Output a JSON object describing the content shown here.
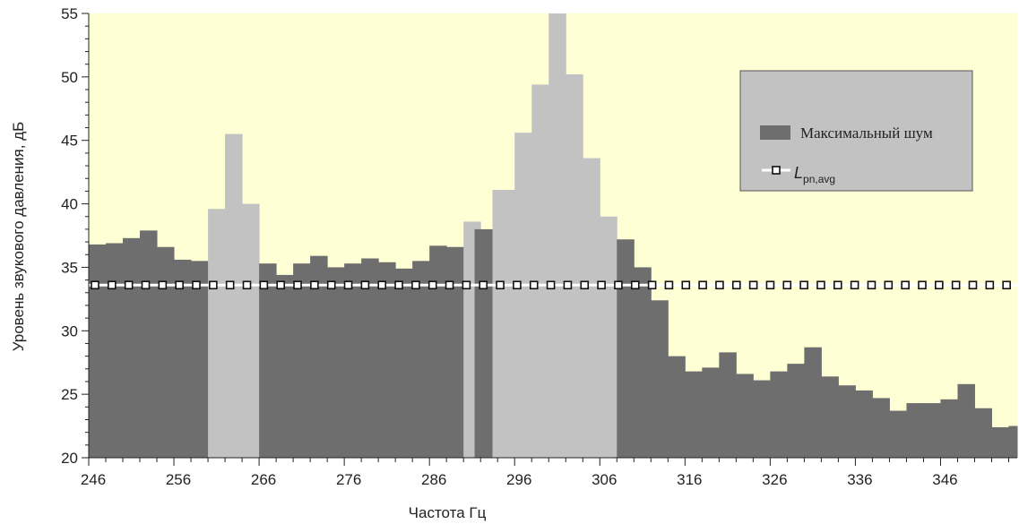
{
  "chart_data": {
    "type": "bar",
    "xlabel": "Частота Гц",
    "ylabel": "Уровень звукового давления, дБ",
    "xlim": [
      246,
      355
    ],
    "ylim": [
      20,
      55
    ],
    "x_ticks": [
      246,
      256,
      266,
      276,
      286,
      296,
      306,
      316,
      326,
      336,
      346
    ],
    "y_ticks": [
      20,
      25,
      30,
      35,
      40,
      45,
      50,
      55
    ],
    "bin_width": 2,
    "bins": [
      {
        "x": 246,
        "value": 36.8,
        "highlight": false
      },
      {
        "x": 248,
        "value": 36.9,
        "highlight": false
      },
      {
        "x": 250,
        "value": 37.3,
        "highlight": false
      },
      {
        "x": 252,
        "value": 37.9,
        "highlight": false
      },
      {
        "x": 254,
        "value": 36.6,
        "highlight": false
      },
      {
        "x": 256,
        "value": 35.6,
        "highlight": false
      },
      {
        "x": 258,
        "value": 35.5,
        "highlight": false
      },
      {
        "x": 260,
        "value": 39.6,
        "highlight": true
      },
      {
        "x": 262,
        "value": 45.5,
        "highlight": true
      },
      {
        "x": 264,
        "value": 40.0,
        "highlight": true
      },
      {
        "x": 266,
        "value": 35.3,
        "highlight": false
      },
      {
        "x": 268,
        "value": 34.4,
        "highlight": false
      },
      {
        "x": 270,
        "value": 35.3,
        "highlight": false
      },
      {
        "x": 272,
        "value": 35.9,
        "highlight": false
      },
      {
        "x": 274,
        "value": 35.0,
        "highlight": false
      },
      {
        "x": 276,
        "value": 35.3,
        "highlight": false
      },
      {
        "x": 278,
        "value": 35.7,
        "highlight": false
      },
      {
        "x": 280,
        "value": 35.4,
        "highlight": false
      },
      {
        "x": 282,
        "value": 34.9,
        "highlight": false
      },
      {
        "x": 284,
        "value": 35.5,
        "highlight": false
      },
      {
        "x": 286,
        "value": 36.7,
        "highlight": false
      },
      {
        "x": 288,
        "value": 36.6,
        "highlight": false
      },
      {
        "x": 290,
        "value": 38.6,
        "highlight": true
      },
      {
        "x": 291.3,
        "value": 38.0,
        "highlight": false,
        "width": 1.4
      },
      {
        "x": 292.7,
        "value": 38.0,
        "highlight": false,
        "width": 0.7
      },
      {
        "x": 293.4,
        "value": 41.1,
        "highlight": true,
        "width": 1.3
      },
      {
        "x": 294.7,
        "value": 41.1,
        "highlight": true,
        "width": 1.3
      },
      {
        "x": 296,
        "value": 45.6,
        "highlight": true
      },
      {
        "x": 298,
        "value": 49.4,
        "highlight": true
      },
      {
        "x": 300,
        "value": 55.0,
        "highlight": true
      },
      {
        "x": 302,
        "value": 50.2,
        "highlight": true
      },
      {
        "x": 304,
        "value": 43.6,
        "highlight": true
      },
      {
        "x": 306,
        "value": 39.0,
        "highlight": true
      },
      {
        "x": 308,
        "value": 37.2,
        "highlight": false
      },
      {
        "x": 310,
        "value": 35.0,
        "highlight": false
      },
      {
        "x": 312,
        "value": 32.4,
        "highlight": false
      },
      {
        "x": 314,
        "value": 28.0,
        "highlight": false
      },
      {
        "x": 316,
        "value": 26.8,
        "highlight": false
      },
      {
        "x": 318,
        "value": 27.1,
        "highlight": false
      },
      {
        "x": 320,
        "value": 28.3,
        "highlight": false
      },
      {
        "x": 322,
        "value": 26.6,
        "highlight": false
      },
      {
        "x": 324,
        "value": 26.1,
        "highlight": false
      },
      {
        "x": 326,
        "value": 26.8,
        "highlight": false
      },
      {
        "x": 328,
        "value": 27.4,
        "highlight": false
      },
      {
        "x": 330,
        "value": 28.7,
        "highlight": false
      },
      {
        "x": 332,
        "value": 26.4,
        "highlight": false
      },
      {
        "x": 334,
        "value": 25.7,
        "highlight": false
      },
      {
        "x": 336,
        "value": 25.3,
        "highlight": false
      },
      {
        "x": 338,
        "value": 24.7,
        "highlight": false
      },
      {
        "x": 340,
        "value": 23.7,
        "highlight": false
      },
      {
        "x": 342,
        "value": 24.3,
        "highlight": false
      },
      {
        "x": 344,
        "value": 24.3,
        "highlight": false
      },
      {
        "x": 346,
        "value": 24.6,
        "highlight": false
      },
      {
        "x": 348,
        "value": 25.8,
        "highlight": false
      },
      {
        "x": 350,
        "value": 23.9,
        "highlight": false
      },
      {
        "x": 352,
        "value": 22.4,
        "highlight": false
      },
      {
        "x": 354,
        "value": 22.5,
        "highlight": false
      }
    ],
    "avg_line": {
      "name_main": "L",
      "name_sub": "pn,avg",
      "value": 33.6
    },
    "series": [
      {
        "name": "Максимальный шум",
        "color": "#6e6e6e"
      }
    ],
    "highlight_color": "#c2c2c2",
    "plot_background": "#ffffd6",
    "legend_background": "#c2c2c2",
    "legend_position": "top-right",
    "grid": false
  }
}
